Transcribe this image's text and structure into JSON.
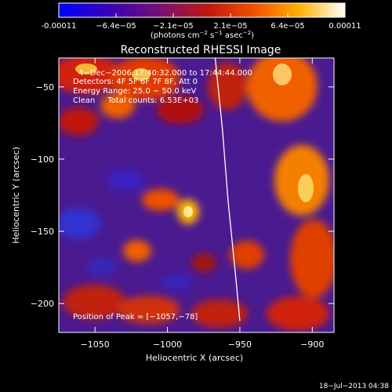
{
  "chart_data": {
    "type": "heatmap",
    "title": "Reconstructed RHESSI Image",
    "xlabel": "Heliocentric X (arcsec)",
    "ylabel": "Heliocentric Y (arcsec)",
    "xlim": [
      -1075,
      -885
    ],
    "ylim": [
      -220,
      -30
    ],
    "x_ticks": [
      -1050,
      -1000,
      -950,
      -900
    ],
    "x_tick_labels": [
      "−1050",
      "−1000",
      "−950",
      "−900"
    ],
    "y_ticks": [
      -50,
      -100,
      -150,
      -200
    ],
    "y_tick_labels": [
      "−50",
      "−100",
      "−150",
      "−200"
    ],
    "colorbar": {
      "min": -0.00011,
      "max": 0.00011,
      "tick_labels": [
        "-0.00011",
        "−6.4e−05",
        "−2.1e−05",
        "2.1e−05",
        "6.4e−05",
        "0.00011"
      ],
      "unit_base": "(photons cm",
      "unit_exp1": "−2",
      "unit_mid": " s",
      "unit_exp2": "−1",
      "unit_mid2": " asec",
      "unit_exp3": "−2",
      "unit_end": ")",
      "colors": [
        "#0000ff",
        "#3a00b8",
        "#7a1070",
        "#c01810",
        "#f05000",
        "#ffb000",
        "#ffffff"
      ]
    },
    "annotations": {
      "time": "4−Dec−2006 17:40:32.000 to 17:44:44.000",
      "detectors": "Detectors: 4F 5F 6F 7F 8F, Att 0",
      "energy": "Energy Range: 25.0 − 50.0 keV",
      "clean": "Clean     Total counts: 6.53E+03",
      "peak": "Position of Peak = [−1057,−78]"
    },
    "limb_curve": [
      [
        -967,
        -30
      ],
      [
        -962,
        -80
      ],
      [
        -958,
        -130
      ],
      [
        -953,
        -180
      ],
      [
        -950,
        -212
      ]
    ],
    "peak_position": [
      -1057,
      -78
    ]
  },
  "footer": {
    "date": "18−Jul−2013 04:38"
  }
}
